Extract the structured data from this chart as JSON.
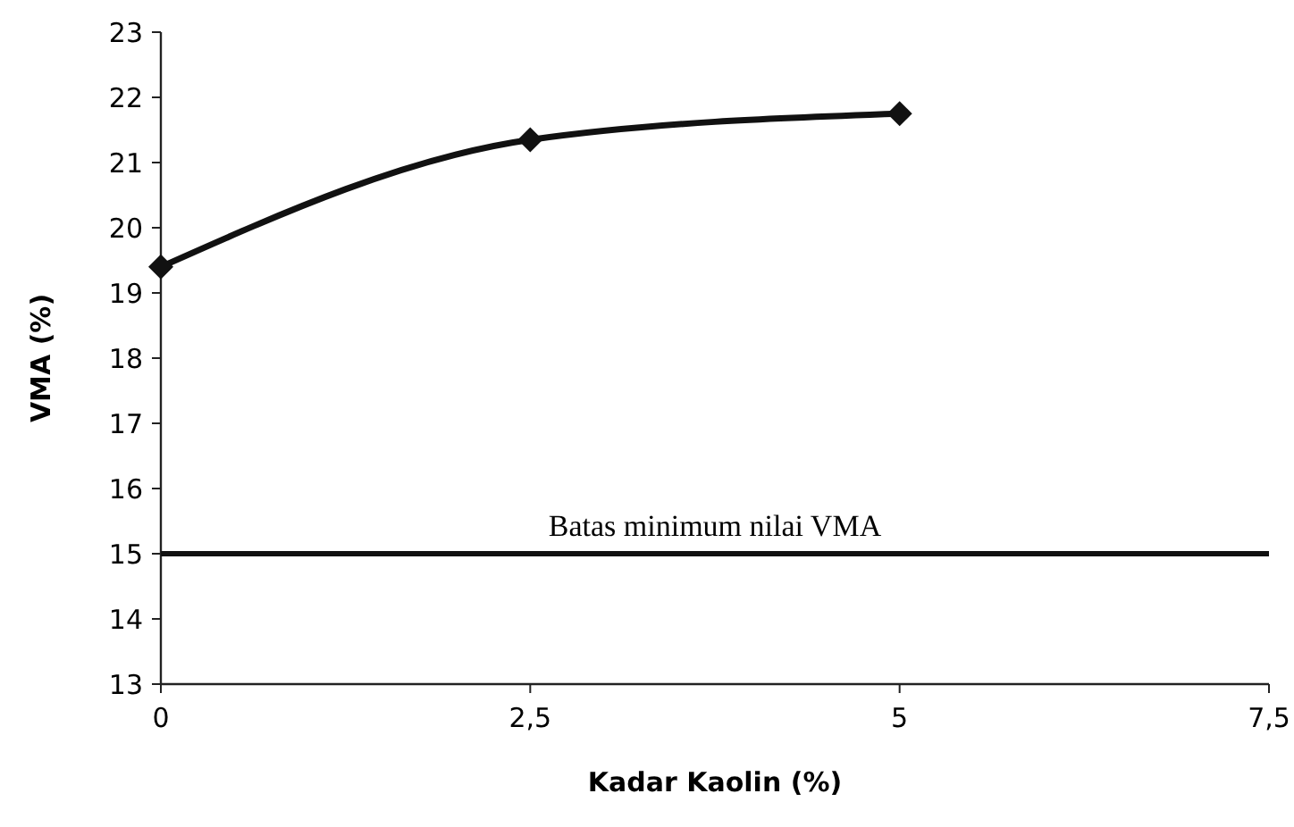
{
  "chart_data": {
    "type": "line",
    "xlabel": "Kadar Kaolin (%)",
    "ylabel": "VMA (%)",
    "x": [
      0,
      2.5,
      5
    ],
    "series": [
      {
        "color": "#111111",
        "values": [
          19.4,
          21.35,
          21.75
        ]
      }
    ],
    "xlim": [
      0,
      7.5
    ],
    "xticks": [
      0,
      {
        "value": 2.5,
        "label": "2,5"
      },
      5,
      {
        "value": 7.5,
        "label": "7,5"
      }
    ],
    "ylim": [
      13,
      23
    ],
    "yticks": [
      13,
      14,
      15,
      16,
      17,
      18,
      19,
      20,
      21,
      22,
      23
    ],
    "marker": "diamond",
    "line_style": "solid",
    "grid": false,
    "ref_lines": [
      {
        "axis": "y",
        "value": 15,
        "label": "Batas minimum nilai VMA",
        "color": "#111111"
      }
    ]
  }
}
